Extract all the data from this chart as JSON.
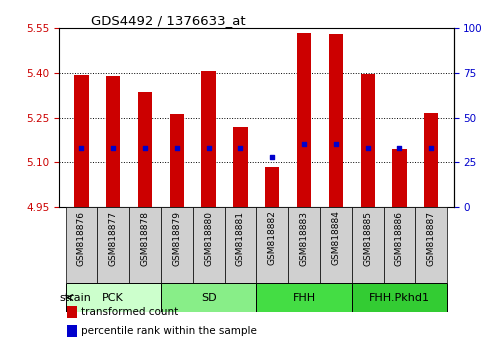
{
  "title": "GDS4492 / 1376633_at",
  "samples": [
    "GSM818876",
    "GSM818877",
    "GSM818878",
    "GSM818879",
    "GSM818880",
    "GSM818881",
    "GSM818882",
    "GSM818883",
    "GSM818884",
    "GSM818885",
    "GSM818886",
    "GSM818887"
  ],
  "transformed_count": [
    5.393,
    5.391,
    5.335,
    5.263,
    5.405,
    5.218,
    5.085,
    5.535,
    5.53,
    5.395,
    5.145,
    5.265
  ],
  "percentile_rank_pct": [
    33,
    33,
    33,
    33,
    33,
    33,
    28,
    35,
    35,
    33,
    33,
    33
  ],
  "base_value": 4.95,
  "ylim_left": [
    4.95,
    5.55
  ],
  "ylim_right": [
    0,
    100
  ],
  "yticks_left": [
    4.95,
    5.1,
    5.25,
    5.4,
    5.55
  ],
  "yticks_right": [
    0,
    25,
    50,
    75,
    100
  ],
  "bar_color": "#cc0000",
  "dot_color": "#0000cc",
  "group_configs": [
    {
      "label": "PCK",
      "indices": [
        0,
        1,
        2
      ],
      "color": "#ccffcc"
    },
    {
      "label": "SD",
      "indices": [
        3,
        4,
        5
      ],
      "color": "#88ee88"
    },
    {
      "label": "FHH",
      "indices": [
        6,
        7,
        8
      ],
      "color": "#44dd44"
    },
    {
      "label": "FHH.Pkhd1",
      "indices": [
        9,
        10,
        11
      ],
      "color": "#33cc33"
    }
  ],
  "strain_label": "strain",
  "legend_entries": [
    {
      "color": "#cc0000",
      "label": "transformed count"
    },
    {
      "color": "#0000cc",
      "label": "percentile rank within the sample"
    }
  ],
  "left_ytick_color": "#cc0000",
  "right_ytick_color": "#0000cc",
  "xtick_bg_color": "#d0d0d0",
  "plot_bg_color": "#ffffff"
}
